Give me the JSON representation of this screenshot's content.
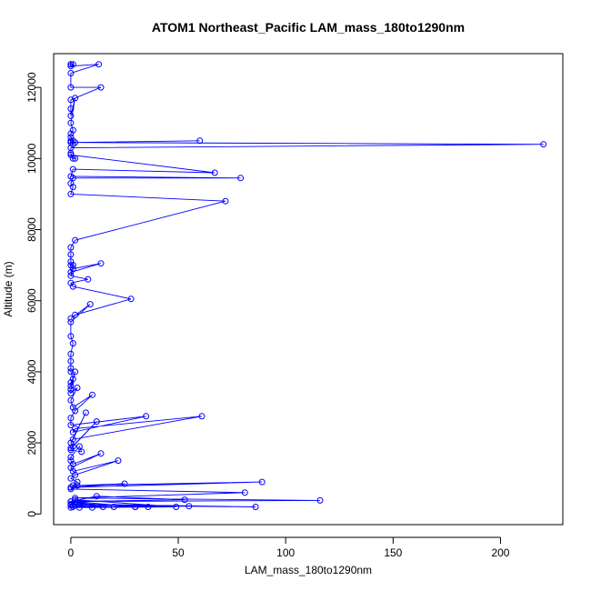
{
  "chart_data": {
    "type": "line",
    "title": "ATOM1 Northeast_Pacific LAM_mass_180to1290nm",
    "xlabel": "LAM_mass_180to1290nm",
    "ylabel": "Altitude (m)",
    "xlim": [
      -8,
      229
    ],
    "ylim": [
      -300,
      12950
    ],
    "x_ticks": [
      0,
      50,
      100,
      150,
      200
    ],
    "y_ticks": [
      0,
      2000,
      4000,
      6000,
      8000,
      10000,
      12000
    ],
    "grid": false,
    "legend": "none",
    "series_color": "#0000ff",
    "series": [
      {
        "x": [
          0,
          0,
          1,
          0,
          13,
          0,
          0,
          14,
          0,
          0,
          0,
          2,
          0,
          1,
          0,
          0,
          1,
          0,
          0,
          1,
          0,
          60,
          2,
          220,
          0,
          0,
          1,
          2,
          0,
          67,
          1,
          0,
          79,
          1,
          0,
          1,
          0,
          72,
          2,
          0,
          0,
          0,
          0,
          1,
          0,
          14,
          1,
          0,
          8,
          0,
          1,
          28,
          2,
          0,
          9,
          0,
          0,
          1,
          0,
          0,
          0,
          0,
          1,
          0,
          0,
          2,
          0,
          0,
          0,
          3,
          0,
          1,
          10,
          2,
          0,
          0,
          35,
          1,
          2,
          61,
          1,
          7,
          0,
          1,
          12,
          0,
          0,
          5,
          4,
          0,
          0,
          1,
          14,
          0,
          1,
          22,
          2,
          0,
          3,
          1,
          89,
          0,
          25,
          3,
          0,
          81,
          2,
          116,
          0,
          53,
          12,
          0,
          6,
          0,
          86,
          1,
          2,
          49,
          0,
          30,
          4,
          0,
          55,
          15,
          2,
          30,
          20,
          0,
          10,
          36,
          1,
          4
        ],
        "y": [
          12650,
          12650,
          12650,
          12600,
          12650,
          12400,
          12000,
          12000,
          11650,
          11400,
          11200,
          11700,
          11000,
          10800,
          10700,
          10600,
          10500,
          10500,
          10450,
          10400,
          10450,
          10500,
          10450,
          10400,
          10300,
          10150,
          10000,
          10000,
          10100,
          9600,
          9700,
          9500,
          9450,
          9450,
          9300,
          9200,
          9000,
          8800,
          7700,
          7500,
          7300,
          7100,
          7000,
          7000,
          6800,
          7050,
          6900,
          6700,
          6600,
          6500,
          6400,
          6050,
          5600,
          5500,
          5900,
          5400,
          5000,
          4800,
          4500,
          4300,
          4100,
          4000,
          3800,
          3700,
          3600,
          4000,
          3500,
          3500,
          3400,
          3550,
          3200,
          3000,
          3350,
          2900,
          2700,
          2500,
          2750,
          2300,
          2400,
          2750,
          2100,
          2850,
          2000,
          1900,
          2600,
          1850,
          1800,
          1750,
          1900,
          1600,
          1500,
          1400,
          1700,
          1300,
          1200,
          1500,
          1100,
          1000,
          900,
          800,
          900,
          750,
          850,
          800,
          700,
          600,
          450,
          380,
          350,
          400,
          500,
          350,
          300,
          280,
          200,
          250,
          400,
          200,
          180,
          200,
          300,
          250,
          220,
          200,
          350,
          200,
          200,
          250,
          180,
          200,
          200,
          180
        ]
      }
    ]
  }
}
